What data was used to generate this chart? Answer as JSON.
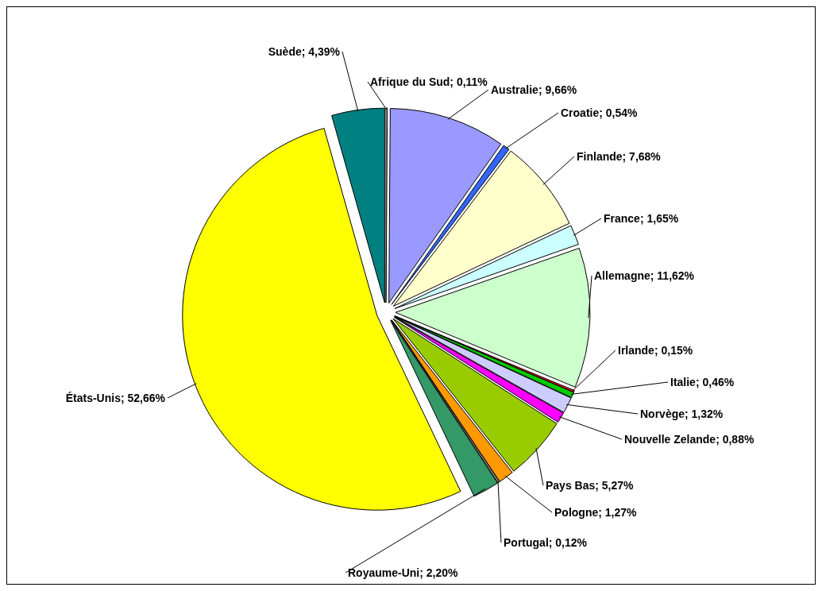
{
  "chart_data": {
    "type": "pie",
    "categories": [
      "Afrique du Sud",
      "Australie",
      "Croatie",
      "Finlande",
      "France",
      "Allemagne",
      "Irlande",
      "Italie",
      "Norvège",
      "Nouvelle Zelande",
      "Pays Bas",
      "Pologne",
      "Portugal",
      "Royaume-Uni",
      "États-Unis",
      "Suède"
    ],
    "values": [
      0.11,
      9.66,
      0.54,
      7.68,
      1.65,
      11.62,
      0.15,
      0.46,
      1.32,
      0.88,
      5.27,
      1.27,
      0.12,
      2.2,
      52.66,
      4.39
    ],
    "colors": [
      "#ffffff",
      "#9999ff",
      "#3366ff",
      "#ffffcc",
      "#ccffff",
      "#ccffcc",
      "#ff0000",
      "#00cc00",
      "#ccccff",
      "#ff00ff",
      "#99cc00",
      "#ff9900",
      "#c0c0c0",
      "#339966",
      "#ffff00",
      "#008080"
    ],
    "value_labels": [
      "0,11%",
      "9,66%",
      "0,54%",
      "7,68%",
      "1,65%",
      "11,62%",
      "0,15%",
      "0,46%",
      "1,32%",
      "0,88%",
      "5,27%",
      "1,27%",
      "0,12%",
      "2,20%",
      "52,66%",
      "4,39%"
    ],
    "legend": false
  }
}
